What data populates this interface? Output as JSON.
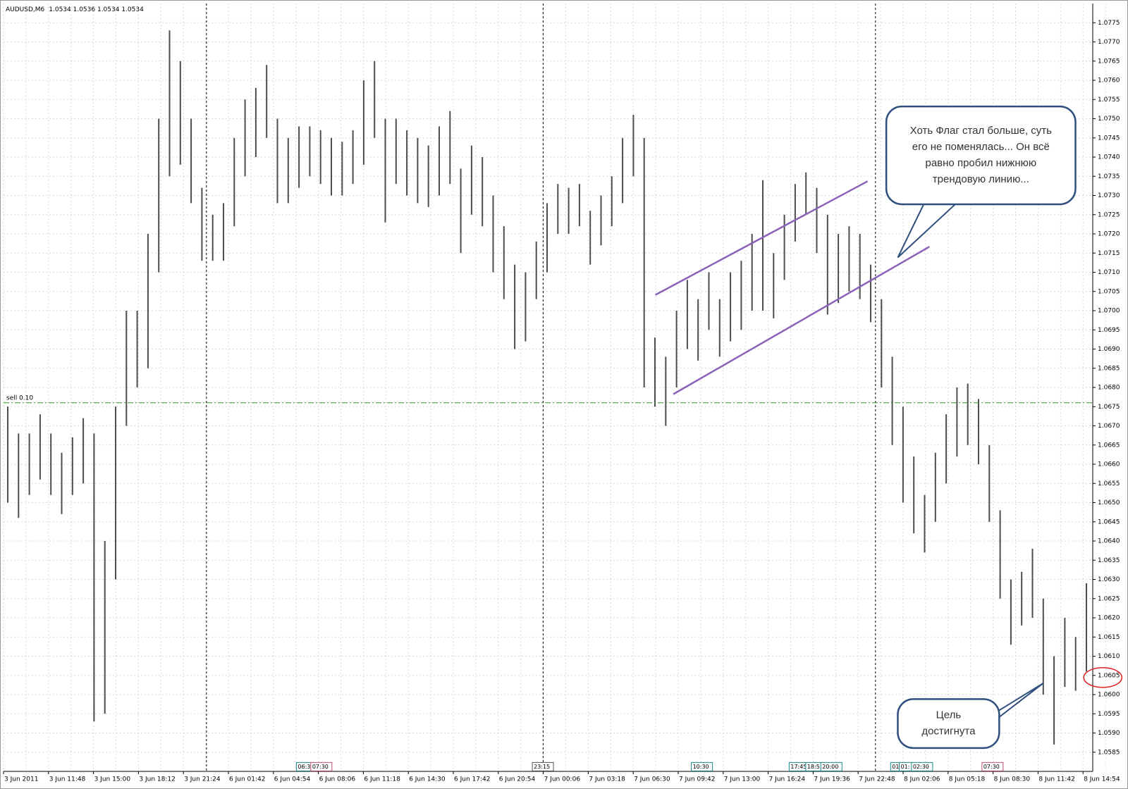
{
  "chart_data": {
    "type": "ohlc",
    "title": "AUDUSD,M6",
    "quote": "1.0534 1.0536 1.0534 1.0534",
    "ylim": [
      1.058,
      1.078
    ],
    "yticks": [
      1.0585,
      {
        "value": 1.059,
        "label": "1.0590"
      },
      1.0595,
      {
        "value": 1.06,
        "label": "1.0600"
      },
      1.0605,
      {
        "value": 1.061,
        "label": "1.0610"
      },
      1.0615,
      {
        "value": 1.062,
        "label": "1.0620"
      },
      1.0625,
      {
        "value": 1.063,
        "label": "1.0630"
      },
      1.0635,
      {
        "value": 1.064,
        "label": "1.0640"
      },
      1.0645,
      {
        "value": 1.065,
        "label": "1.0650"
      },
      1.0655,
      {
        "value": 1.066,
        "label": "1.0660"
      },
      1.0665,
      {
        "value": 1.067,
        "label": "1.0670"
      },
      1.0675,
      {
        "value": 1.068,
        "label": "1.0680"
      },
      1.0685,
      {
        "value": 1.069,
        "label": "1.0690"
      },
      1.0695,
      {
        "value": 1.07,
        "label": "1.0700"
      },
      1.0705,
      {
        "value": 1.071,
        "label": "1.0710"
      },
      1.0715,
      {
        "value": 1.072,
        "label": "1.0720"
      },
      1.0725,
      {
        "value": 1.073,
        "label": "1.0730"
      },
      1.0735,
      {
        "value": 1.074,
        "label": "1.0740"
      },
      1.0745,
      {
        "value": 1.075,
        "label": "1.0750"
      },
      1.0755,
      {
        "value": 1.076,
        "label": "1.0760"
      },
      1.0765,
      {
        "value": 1.077,
        "label": "1.0770"
      },
      1.0775
    ],
    "time_labels": [
      "3 Jun 2011",
      "3 Jun 11:48",
      "3 Jun 15:00",
      "3 Jun 18:12",
      "3 Jun 21:24",
      "6 Jun 01:42",
      "6 Jun 04:54",
      "6 Jun 08:06",
      "6 Jun 11:18",
      "6 Jun 14:30",
      "6 Jun 17:42",
      "6 Jun 20:54",
      "7 Jun 00:06",
      "7 Jun 03:18",
      "7 Jun 06:30",
      "7 Jun 09:42",
      "7 Jun 13:00",
      "7 Jun 16:24",
      "7 Jun 19:36",
      "7 Jun 22:48",
      "8 Jun 02:06",
      "8 Jun 05:18",
      "8 Jun 08:30",
      "8 Jun 11:42",
      "8 Jun 14:54"
    ],
    "grid": true,
    "color": "#4d4d4d",
    "high": [
      1.0675,
      1.0668,
      1.0668,
      1.0673,
      1.0668,
      1.0663,
      1.0667,
      1.0672,
      1.0668,
      1.064,
      1.0675,
      1.07,
      1.07,
      1.072,
      1.075,
      1.0773,
      1.0765,
      1.075,
      1.0732,
      1.0725,
      1.0728,
      1.0745,
      1.0755,
      1.0758,
      1.0764,
      1.075,
      1.0745,
      1.0748,
      1.0748,
      1.0747,
      1.0745,
      1.0744,
      1.0747,
      1.076,
      1.0765,
      1.075,
      1.075,
      1.0747,
      1.0745,
      1.0743,
      1.0748,
      1.0752,
      1.0737,
      1.0743,
      1.074,
      1.073,
      1.0722,
      1.0712,
      1.071,
      1.0718,
      1.0728,
      1.0733,
      1.0732,
      1.0733,
      1.0726,
      1.073,
      1.0735,
      1.0745,
      1.0751,
      1.0745,
      1.0693,
      1.0688,
      1.07,
      1.0708,
      1.0703,
      1.071,
      1.0703,
      1.071,
      1.0713,
      1.072,
      1.0734,
      1.0715,
      1.0725,
      1.0733,
      1.0736,
      1.0732,
      1.0725,
      1.072,
      1.0722,
      1.072,
      1.0712,
      1.0703,
      1.0688,
      1.0675,
      1.0662,
      1.0652,
      1.0663,
      1.0673,
      1.068,
      1.0681,
      1.0677,
      1.0665,
      1.0648,
      1.063,
      1.0632,
      1.0638,
      1.0625,
      1.061,
      1.062,
      1.0615,
      1.0629
    ],
    "low": [
      1.065,
      1.0646,
      1.0652,
      1.0656,
      1.0652,
      1.0647,
      1.0652,
      1.0655,
      1.0593,
      1.0595,
      1.063,
      1.067,
      1.068,
      1.0685,
      1.071,
      1.0735,
      1.0738,
      1.0728,
      1.0713,
      1.0713,
      1.0713,
      1.0722,
      1.0735,
      1.074,
      1.0745,
      1.0728,
      1.0728,
      1.0732,
      1.0735,
      1.0733,
      1.073,
      1.073,
      1.0733,
      1.0738,
      1.0745,
      1.0723,
      1.0733,
      1.073,
      1.0728,
      1.0727,
      1.073,
      1.0733,
      1.0715,
      1.0725,
      1.0722,
      1.071,
      1.0703,
      1.069,
      1.0692,
      1.0703,
      1.071,
      1.072,
      1.072,
      1.0722,
      1.0712,
      1.0717,
      1.0722,
      1.0728,
      1.0735,
      1.068,
      1.0675,
      1.067,
      1.068,
      1.069,
      1.0687,
      1.0695,
      1.0688,
      1.0692,
      1.0695,
      1.07,
      1.07,
      1.0698,
      1.0708,
      1.0718,
      1.0725,
      1.0715,
      1.0699,
      1.0702,
      1.0705,
      1.0703,
      1.0697,
      1.068,
      1.0665,
      1.065,
      1.0642,
      1.0637,
      1.0645,
      1.0655,
      1.0662,
      1.0665,
      1.066,
      1.0645,
      1.0625,
      1.0613,
      1.0618,
      1.062,
      1.06,
      1.0587,
      1.0602,
      1.0601,
      1.0606
    ],
    "order_line": {
      "label": "sell 0.10",
      "value": 1.0676,
      "color": "#2e8b2e"
    },
    "events": [
      {
        "label": "06:3",
        "color": "#1c8a8a"
      },
      {
        "label": "07:30",
        "color": "#c0506a"
      },
      {
        "label": "23:15",
        "color": "#555555"
      },
      {
        "label": "10:30",
        "color": "#1c8a8a"
      },
      {
        "label": "17:45",
        "color": "#1c8a8a"
      },
      {
        "label": "18:5",
        "color": "#1c8a8a"
      },
      {
        "label": "20:00",
        "color": "#1c8a8a"
      },
      {
        "label": "01",
        "color": "#1c8a8a"
      },
      {
        "label": "01:",
        "color": "#1c8a8a"
      },
      {
        "label": "02:30",
        "color": "#1c8a8a"
      },
      {
        "label": "07:30",
        "color": "#c0506a"
      }
    ],
    "annotations": [
      {
        "lines": [
          "Хоть Флаг стал больше, суть",
          "его не поменялась... Он всё",
          "равно пробил нижнюю",
          "трендовую линию..."
        ]
      },
      {
        "lines": [
          "Цель",
          "достигнута"
        ]
      }
    ]
  }
}
